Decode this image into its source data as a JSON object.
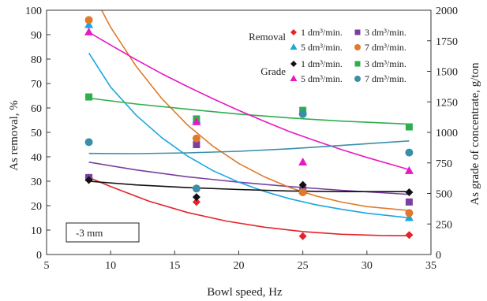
{
  "chart_data": {
    "type": "scatter",
    "xlabel": "Bowl speed, Hz",
    "ylabel_left": "As  removal, %",
    "ylabel_right": "As  grade of concentrate, g/ton",
    "xlim": [
      5,
      35
    ],
    "ylim_left": [
      0,
      100
    ],
    "ylim_right": [
      0,
      2000
    ],
    "x_ticks": [
      5,
      10,
      15,
      20,
      25,
      30,
      35
    ],
    "y_left_ticks": [
      0,
      10,
      20,
      30,
      40,
      50,
      60,
      70,
      80,
      90,
      100
    ],
    "y_right_ticks": [
      0,
      250,
      500,
      750,
      1000,
      1250,
      1500,
      1750,
      2000
    ],
    "grid": false,
    "annotation": "-3 mm",
    "legend": {
      "placement": "top-right",
      "group_labels": [
        "Removal",
        "Grade"
      ]
    },
    "series": [
      {
        "group": "Removal",
        "name": "1 dm³/min.",
        "marker": "diamond",
        "color": "#e3242b",
        "axis": "left",
        "x": [
          8.3,
          16.7,
          25,
          33.3
        ],
        "y": [
          31.5,
          21.5,
          7.5,
          8.0
        ],
        "fit": [
          [
            8.3,
            31.5
          ],
          [
            10,
            27.8
          ],
          [
            13,
            21.8
          ],
          [
            16,
            17.2
          ],
          [
            19,
            13.7
          ],
          [
            22,
            11.2
          ],
          [
            25,
            9.4
          ],
          [
            28,
            8.3
          ],
          [
            31,
            7.8
          ],
          [
            33.3,
            7.7
          ]
        ]
      },
      {
        "group": "Removal",
        "name": "3 dm³/min.",
        "marker": "square",
        "color": "#7b3fa0",
        "axis": "left",
        "x": [
          8.3,
          16.7,
          25,
          33.3
        ],
        "y": [
          31.5,
          45.0,
          26.5,
          21.5
        ],
        "fit": [
          [
            8.3,
            37.8
          ],
          [
            12,
            34.6
          ],
          [
            16,
            31.8
          ],
          [
            20,
            29.6
          ],
          [
            24,
            27.8
          ],
          [
            28,
            26.3
          ],
          [
            33.3,
            24.6
          ]
        ]
      },
      {
        "group": "Removal",
        "name": "5 dm³/min.",
        "marker": "triangle",
        "color": "#1aa6e0",
        "axis": "left",
        "x": [
          8.3,
          16.7,
          25,
          33.3
        ],
        "y": [
          94.0,
          55.0,
          26.0,
          15.0
        ],
        "fit": [
          [
            8.3,
            82.5
          ],
          [
            10,
            68.5
          ],
          [
            12,
            57.0
          ],
          [
            14,
            47.8
          ],
          [
            16,
            40.3
          ],
          [
            18,
            34.3
          ],
          [
            20,
            29.6
          ],
          [
            22,
            25.8
          ],
          [
            24,
            22.8
          ],
          [
            26,
            20.4
          ],
          [
            28,
            18.5
          ],
          [
            30,
            16.9
          ],
          [
            33.3,
            15.0
          ]
        ]
      },
      {
        "group": "Removal",
        "name": "7 dm³/min.",
        "marker": "circle",
        "color": "#e07a2a",
        "axis": "left",
        "x": [
          8.3,
          16.7,
          25,
          33.3
        ],
        "y": [
          96.0,
          47.5,
          25.5,
          17.0
        ],
        "fit": [
          [
            9.3,
            100
          ],
          [
            10,
            93.0
          ],
          [
            12,
            77.0
          ],
          [
            14,
            63.8
          ],
          [
            16,
            53.0
          ],
          [
            18,
            44.3
          ],
          [
            20,
            37.3
          ],
          [
            22,
            31.8
          ],
          [
            24,
            27.4
          ],
          [
            26,
            24.0
          ],
          [
            28,
            21.5
          ],
          [
            30,
            19.6
          ],
          [
            33.3,
            18.0
          ]
        ]
      },
      {
        "group": "Grade",
        "name": "1 dm³/min.",
        "marker": "diamond",
        "color": "#111111",
        "axis": "right",
        "x": [
          8.3,
          16.7,
          25,
          33.3
        ],
        "y": [
          610,
          470,
          570,
          510
        ],
        "fit": [
          [
            8.3,
            600
          ],
          [
            12,
            570
          ],
          [
            16,
            548
          ],
          [
            20,
            532
          ],
          [
            24,
            520
          ],
          [
            28,
            515
          ],
          [
            33.3,
            515
          ]
        ]
      },
      {
        "group": "Grade",
        "name": "3 dm³/min.",
        "marker": "square",
        "color": "#2fae4e",
        "axis": "right",
        "x": [
          8.3,
          16.7,
          25,
          33.3
        ],
        "y": [
          1290,
          1110,
          1180,
          1045
        ],
        "fit": [
          [
            8.3,
            1280
          ],
          [
            12,
            1232
          ],
          [
            16,
            1190
          ],
          [
            20,
            1150
          ],
          [
            24,
            1118
          ],
          [
            28,
            1092
          ],
          [
            33.3,
            1068
          ]
        ]
      },
      {
        "group": "Grade",
        "name": "5 dm³/min.",
        "marker": "triangle",
        "color": "#e619c3",
        "axis": "right",
        "x": [
          8.3,
          16.7,
          25,
          33.3
        ],
        "y": [
          1820,
          1085,
          755,
          685
        ],
        "fit": [
          [
            8.3,
            1820
          ],
          [
            10,
            1715
          ],
          [
            12,
            1595
          ],
          [
            14,
            1480
          ],
          [
            16,
            1375
          ],
          [
            18,
            1275
          ],
          [
            20,
            1180
          ],
          [
            22,
            1090
          ],
          [
            24,
            1005
          ],
          [
            26,
            930
          ],
          [
            28,
            860
          ],
          [
            30,
            795
          ],
          [
            33.3,
            695
          ]
        ]
      },
      {
        "group": "Grade",
        "name": "7 dm³/min.",
        "marker": "circle",
        "color": "#3a8fa8",
        "axis": "right",
        "x": [
          8.3,
          16.7,
          25,
          33.3
        ],
        "y": [
          920,
          540,
          1150,
          835
        ],
        "fit": [
          [
            8.3,
            828
          ],
          [
            12,
            826
          ],
          [
            16,
            832
          ],
          [
            20,
            845
          ],
          [
            24,
            866
          ],
          [
            28,
            893
          ],
          [
            33.3,
            930
          ]
        ]
      }
    ]
  }
}
